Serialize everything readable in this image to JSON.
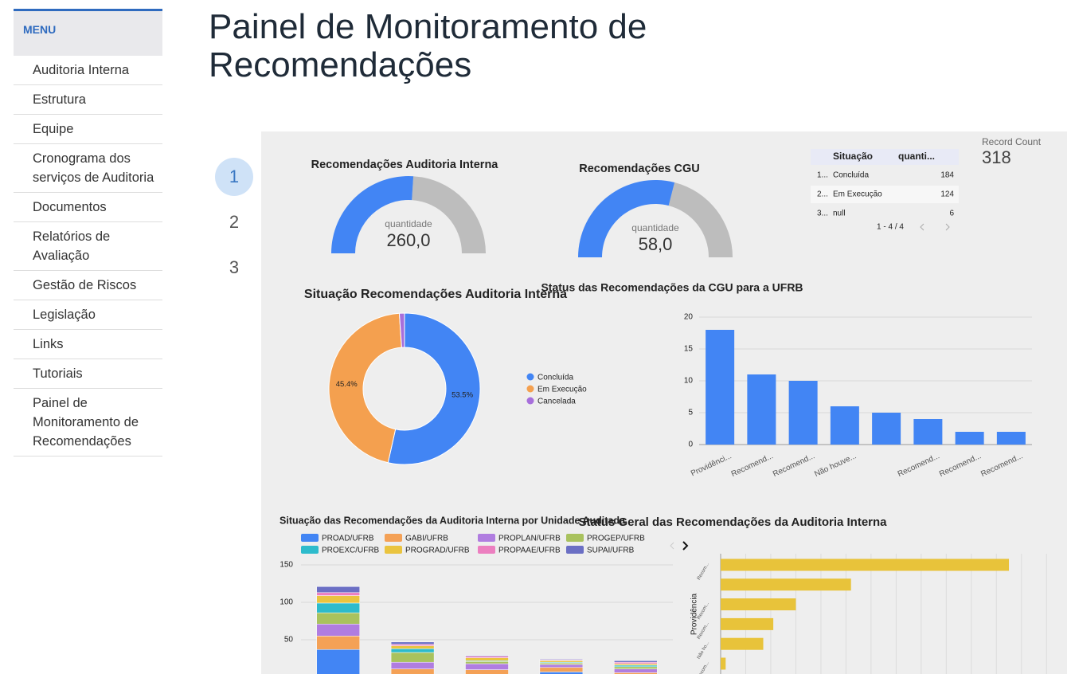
{
  "menu": {
    "title": "MENU",
    "items": [
      "Auditoria Interna",
      "Estrutura",
      "Equipe",
      "Cronograma dos serviços de Auditoria",
      "Documentos",
      "Relatórios de Avaliação",
      "Gestão de Riscos",
      "Legislação",
      "Links",
      "Tutoriais",
      "Painel de Monitoramento de Recomendações"
    ]
  },
  "title": "Painel de Monitoramento de Recomendações",
  "pager": [
    "1",
    "2",
    "3"
  ],
  "dashboard": {
    "gauges": [
      {
        "title": "Recomendações Auditoria Interna",
        "label": "quantidade",
        "value": 260,
        "value_label": "260,0",
        "range": [
          0,
          500
        ],
        "color": "#4285f4",
        "track_color": "#bdbdbd"
      },
      {
        "title": "Recomendações CGU",
        "label": "quantidade",
        "value": 58,
        "value_label": "58,0",
        "range": [
          0,
          100
        ],
        "color": "#4285f4",
        "track_color": "#bdbdbd"
      }
    ],
    "table": {
      "columns": [
        "Situação",
        "quanti..."
      ],
      "rows": [
        [
          "1...",
          "Concluída",
          184
        ],
        [
          "2...",
          "Em Execução",
          124
        ],
        [
          "3...",
          "null",
          6
        ]
      ],
      "pagination": "1 - 4 / 4"
    },
    "record_count": {
      "label": "Record Count",
      "value": 318
    },
    "charts": [
      {
        "type": "donut",
        "title": "Situação Recomendações Auditoria Interna",
        "categories": [
          "Concluída",
          "Em Execução",
          "Cancelada"
        ],
        "values": [
          53.5,
          45.4,
          1.1
        ],
        "value_labels": [
          "53.5%",
          "45.4%",
          null
        ],
        "colors": [
          "#4285f4",
          "#f4a04f",
          "#a76fdb"
        ]
      },
      {
        "type": "bar",
        "title": "Status das Recomendações da CGU para a UFRB",
        "categories": [
          "Providênci...",
          "Recomend...",
          "Recomend...",
          "Não houve...",
          null,
          "Recomend...",
          "Recomend...",
          "Recomend..."
        ],
        "values": [
          18,
          11,
          10,
          6,
          5,
          4,
          2,
          2
        ],
        "color": "#4285f4",
        "ylim": [
          0,
          20
        ],
        "yticks": [
          0,
          5,
          10,
          15,
          20
        ],
        "grid": true
      },
      {
        "type": "stacked_bar",
        "title": "Situação das Recomendações da Auditoria Interna por Unidade Auditada",
        "categories": [
          null,
          null,
          null,
          null,
          null
        ],
        "ylim": [
          0,
          150
        ],
        "yticks": [
          50,
          100,
          150
        ],
        "grid": true,
        "series": [
          {
            "name": "PROAD/UFRB",
            "color": "#4285f4",
            "values": [
              37,
              4,
              2,
              7,
              2
            ]
          },
          {
            "name": "GABI/UFRB",
            "color": "#f4a156",
            "values": [
              18,
              7,
              8,
              6,
              4
            ]
          },
          {
            "name": "PROPLAN/UFRB",
            "color": "#b07de0",
            "values": [
              16,
              9,
              8,
              4,
              5
            ]
          },
          {
            "name": "PROGEP/UFRB",
            "color": "#a9c25e",
            "values": [
              15,
              13,
              3,
              2,
              3
            ]
          },
          {
            "name": "PROEXC/UFRB",
            "color": "#2dbbcc",
            "values": [
              13,
              5,
              1,
              1,
              2
            ]
          },
          {
            "name": "PROGRAD/UFRB",
            "color": "#eac43f",
            "values": [
              10,
              4,
              4,
              2,
              2
            ]
          },
          {
            "name": "PROPAAE/UFRB",
            "color": "#ec7fc0",
            "values": [
              4,
              2,
              2,
              1,
              2
            ]
          },
          {
            "name": "SUPAI/UFRB",
            "color": "#6b6fc4",
            "values": [
              8,
              3,
              1,
              1,
              2
            ]
          }
        ]
      },
      {
        "type": "hbar",
        "title": "Status Geral das Recomendações da Auditoria Interna",
        "y_label": "Providência",
        "categories": [
          "Recom...",
          null,
          "Recom...",
          "Recom...",
          "Não ho...",
          "Recom..."
        ],
        "values": [
          115,
          52,
          30,
          21,
          17,
          2
        ],
        "color": "#e8c33a",
        "xlim": [
          0,
          135
        ],
        "xticks": [
          0,
          10,
          20,
          30,
          40,
          50,
          60,
          70,
          80,
          90,
          100,
          110,
          120,
          130
        ],
        "grid": true
      }
    ]
  }
}
